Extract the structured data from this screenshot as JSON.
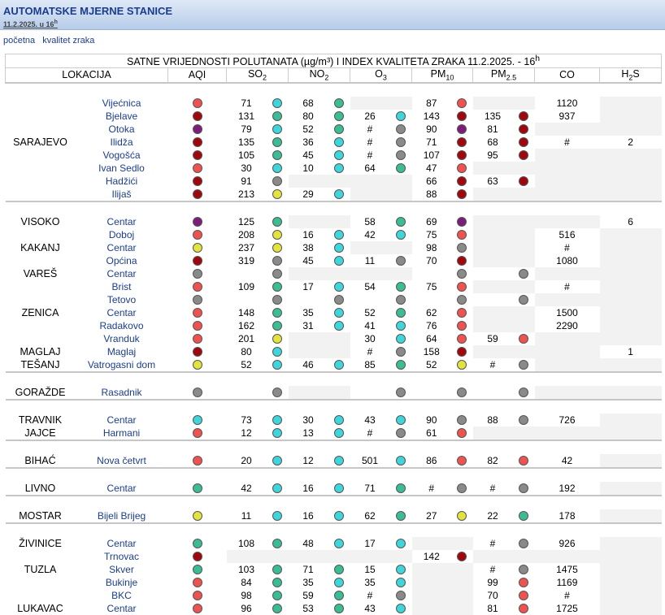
{
  "header": {
    "title": "AUTOMATSKE MJERNE STANICE",
    "date": "11.2.2025. u 16",
    "date_sup": "h"
  },
  "nav": {
    "home": "početna",
    "air": "kvalitet zraka"
  },
  "table": {
    "title": "SATNE VRIJEDNOSTI POLUTANATA (µg/m³) I INDEX KVALITETA ZRAKA 11.2.2025. - 16",
    "title_sup": "h",
    "columns": {
      "loc": "LOKACIJA",
      "aqi": "AQI",
      "so2": "SO",
      "so2_sub": "2",
      "no2": "NO",
      "no2_sub": "2",
      "o3": "O",
      "o3_sub": "3",
      "pm10": "PM",
      "pm10_sub": "10",
      "pm25": "PM",
      "pm25_sub": "2.5",
      "co": "CO",
      "h2s": "H",
      "h2s_sub": "2",
      "h2s_suffix": "S"
    },
    "groups": [
      {
        "rows": [
          {
            "loc": "",
            "st": "Vijećnica",
            "aqi": "red",
            "so2": [
              "71",
              "cyan"
            ],
            "no2": [
              "68",
              "teal"
            ],
            "o3": null,
            "pm10": [
              "87",
              "red"
            ],
            "pm25": null,
            "co": "1120",
            "h2s": ""
          },
          {
            "loc": "",
            "st": "Bjelave",
            "aqi": "dred",
            "so2": [
              "131",
              "teal"
            ],
            "no2": [
              "80",
              "teal"
            ],
            "o3": [
              "26",
              "cyan"
            ],
            "pm10": [
              "143",
              "dred"
            ],
            "pm25": [
              "135",
              "dred"
            ],
            "co": "937",
            "h2s": ""
          },
          {
            "loc": "",
            "st": "Otoka",
            "aqi": "purple",
            "so2": [
              "79",
              "cyan"
            ],
            "no2": [
              "52",
              "teal"
            ],
            "o3": [
              "#",
              "gray"
            ],
            "pm10": [
              "90",
              "purple"
            ],
            "pm25": [
              "81",
              "dred"
            ],
            "co": "",
            "h2s": ""
          },
          {
            "loc": "SARAJEVO",
            "st": "Ilidža",
            "aqi": "dred",
            "so2": [
              "135",
              "teal"
            ],
            "no2": [
              "36",
              "cyan"
            ],
            "o3": [
              "#",
              "gray"
            ],
            "pm10": [
              "71",
              "dred"
            ],
            "pm25": [
              "68",
              "dred"
            ],
            "co": "#",
            "h2s": "2"
          },
          {
            "loc": "",
            "st": "Vogošća",
            "aqi": "dred",
            "so2": [
              "105",
              "teal"
            ],
            "no2": [
              "45",
              "cyan"
            ],
            "o3": [
              "#",
              "gray"
            ],
            "pm10": [
              "107",
              "dred"
            ],
            "pm25": [
              "95",
              "dred"
            ],
            "co": "",
            "h2s": ""
          },
          {
            "loc": "",
            "st": "Ivan Sedlo",
            "aqi": "red",
            "so2": [
              "30",
              "cyan"
            ],
            "no2": [
              "10",
              "cyan"
            ],
            "o3": [
              "64",
              "teal"
            ],
            "pm10": [
              "47",
              "red"
            ],
            "pm25": null,
            "co": "",
            "h2s": ""
          },
          {
            "loc": "",
            "st": "Hadžići",
            "aqi": "dred",
            "so2": [
              "91",
              "gray"
            ],
            "no2": null,
            "o3": null,
            "pm10": [
              "66",
              "dred"
            ],
            "pm25": [
              "63",
              "dred"
            ],
            "co": "",
            "h2s": ""
          },
          {
            "loc": "",
            "st": "Ilijaš",
            "aqi": "dred",
            "so2": [
              "213",
              "yellow"
            ],
            "no2": [
              "29",
              "cyan"
            ],
            "o3": null,
            "pm10": [
              "88",
              "dred"
            ],
            "pm25": null,
            "co": "",
            "h2s": ""
          }
        ]
      },
      {
        "rows": [
          {
            "loc": "VISOKO",
            "st": "Centar",
            "aqi": "purple",
            "so2": [
              "125",
              "teal"
            ],
            "no2": null,
            "o3": [
              "58",
              "teal"
            ],
            "pm10": [
              "69",
              "purple"
            ],
            "pm25": null,
            "co": "",
            "h2s": "6"
          },
          {
            "loc": "",
            "st": "Doboj",
            "aqi": "red",
            "so2": [
              "208",
              "yellow"
            ],
            "no2": [
              "16",
              "cyan"
            ],
            "o3": [
              "42",
              "cyan"
            ],
            "pm10": [
              "75",
              "red"
            ],
            "pm25": null,
            "co": "516",
            "h2s": ""
          },
          {
            "loc": "KAKANJ",
            "st": "Centar",
            "aqi": "yellow",
            "so2": [
              "237",
              "yellow"
            ],
            "no2": [
              "38",
              "cyan"
            ],
            "o3": null,
            "pm10": [
              "98",
              "gray"
            ],
            "pm25": null,
            "co": "#",
            "h2s": ""
          },
          {
            "loc": "",
            "st": "Općina",
            "aqi": "dred",
            "so2": [
              "319",
              "gray"
            ],
            "no2": [
              "45",
              "cyan"
            ],
            "o3": [
              "11",
              "gray"
            ],
            "pm10": [
              "70",
              "dred"
            ],
            "pm25": null,
            "co": "1080",
            "h2s": ""
          },
          {
            "loc": "VAREŠ",
            "st": "Centar",
            "aqi": "gray",
            "so2": [
              "",
              "gray"
            ],
            "no2": null,
            "o3": null,
            "pm10": [
              "",
              "gray"
            ],
            "pm25": [
              "",
              "gray"
            ],
            "co": "",
            "h2s": ""
          },
          {
            "loc": "",
            "st": "Brist",
            "aqi": "red",
            "so2": [
              "109",
              "teal"
            ],
            "no2": [
              "17",
              "cyan"
            ],
            "o3": [
              "54",
              "teal"
            ],
            "pm10": [
              "75",
              "red"
            ],
            "pm25": null,
            "co": "#",
            "h2s": ""
          },
          {
            "loc": "",
            "st": "Tetovo",
            "aqi": "gray",
            "so2": [
              "",
              "gray"
            ],
            "no2": [
              "",
              "gray"
            ],
            "o3": [
              "",
              "gray"
            ],
            "pm10": [
              "",
              "gray"
            ],
            "pm25": [
              "",
              "gray"
            ],
            "co": "",
            "h2s": ""
          },
          {
            "loc": "ZENICA",
            "st": "Centar",
            "aqi": "red",
            "so2": [
              "148",
              "teal"
            ],
            "no2": [
              "35",
              "cyan"
            ],
            "o3": [
              "52",
              "teal"
            ],
            "pm10": [
              "62",
              "red"
            ],
            "pm25": null,
            "co": "1500",
            "h2s": ""
          },
          {
            "loc": "",
            "st": "Radakovo",
            "aqi": "red",
            "so2": [
              "162",
              "teal"
            ],
            "no2": [
              "31",
              "cyan"
            ],
            "o3": [
              "41",
              "cyan"
            ],
            "pm10": [
              "76",
              "red"
            ],
            "pm25": null,
            "co": "2290",
            "h2s": ""
          },
          {
            "loc": "",
            "st": "Vranduk",
            "aqi": "red",
            "so2": [
              "201",
              "yellow"
            ],
            "no2": null,
            "o3": [
              "30",
              "cyan"
            ],
            "pm10": [
              "64",
              "red"
            ],
            "pm25": [
              "59",
              "red"
            ],
            "co": "",
            "h2s": ""
          },
          {
            "loc": "MAGLAJ",
            "st": "Maglaj",
            "aqi": "dred",
            "so2": [
              "80",
              "cyan"
            ],
            "no2": null,
            "o3": [
              "#",
              "gray"
            ],
            "pm10": [
              "158",
              "dred"
            ],
            "pm25": null,
            "co": "",
            "h2s": "1"
          },
          {
            "loc": "TEŠANJ",
            "st": "Vatrogasni dom",
            "aqi": "yellow",
            "so2": [
              "52",
              "cyan"
            ],
            "no2": [
              "46",
              "cyan"
            ],
            "o3": [
              "85",
              "teal"
            ],
            "pm10": [
              "52",
              "yellow"
            ],
            "pm25": [
              "#",
              "gray"
            ],
            "co": "",
            "h2s": ""
          }
        ]
      },
      {
        "rows": [
          {
            "loc": "GORAŽDE",
            "st": "Rasadnik",
            "aqi": "gray",
            "so2": [
              "",
              "gray"
            ],
            "no2": null,
            "o3": [
              "",
              "gray"
            ],
            "pm10": [
              "",
              "gray"
            ],
            "pm25": [
              "",
              "gray"
            ],
            "co": "",
            "h2s": ""
          }
        ]
      },
      {
        "rows": [
          {
            "loc": "TRAVNIK",
            "st": "Centar",
            "aqi": "cyan",
            "so2": [
              "73",
              "cyan"
            ],
            "no2": [
              "30",
              "cyan"
            ],
            "o3": [
              "43",
              "cyan"
            ],
            "pm10": [
              "90",
              "gray"
            ],
            "pm25": [
              "88",
              "gray"
            ],
            "co": "726",
            "h2s": ""
          },
          {
            "loc": "JAJCE",
            "st": "Harmani",
            "aqi": "red",
            "so2": [
              "12",
              "cyan"
            ],
            "no2": [
              "13",
              "cyan"
            ],
            "o3": [
              "#",
              "gray"
            ],
            "pm10": [
              "61",
              "red"
            ],
            "pm25": null,
            "co": "",
            "h2s": ""
          }
        ]
      },
      {
        "rows": [
          {
            "loc": "BIHAĆ",
            "st": "Nova četvrt",
            "aqi": "red",
            "so2": [
              "20",
              "cyan"
            ],
            "no2": [
              "12",
              "cyan"
            ],
            "o3": [
              "501",
              "cyan"
            ],
            "pm10": [
              "86",
              "red"
            ],
            "pm25": [
              "82",
              "red"
            ],
            "co": "42",
            "h2s": ""
          }
        ]
      },
      {
        "rows": [
          {
            "loc": "LIVNO",
            "st": "Centar",
            "aqi": "teal",
            "so2": [
              "42",
              "cyan"
            ],
            "no2": [
              "16",
              "cyan"
            ],
            "o3": [
              "71",
              "teal"
            ],
            "pm10": [
              "#",
              "gray"
            ],
            "pm25": [
              "#",
              "gray"
            ],
            "co": "192",
            "h2s": ""
          }
        ]
      },
      {
        "rows": [
          {
            "loc": "MOSTAR",
            "st": "Bijeli Brijeg",
            "aqi": "yellow",
            "so2": [
              "11",
              "cyan"
            ],
            "no2": [
              "16",
              "cyan"
            ],
            "o3": [
              "62",
              "teal"
            ],
            "pm10": [
              "27",
              "yellow"
            ],
            "pm25": [
              "22",
              "teal"
            ],
            "co": "178",
            "h2s": ""
          }
        ]
      },
      {
        "rows": [
          {
            "loc": "ŽIVINICE",
            "st": "Centar",
            "aqi": "teal",
            "so2": [
              "108",
              "teal"
            ],
            "no2": [
              "48",
              "cyan"
            ],
            "o3": [
              "17",
              "cyan"
            ],
            "pm10": null,
            "pm25": [
              "#",
              "gray"
            ],
            "co": "926",
            "h2s": ""
          },
          {
            "loc": "",
            "st": "Trnovac",
            "aqi": "dred",
            "so2": null,
            "no2": null,
            "o3": null,
            "pm10": [
              "142",
              "dred"
            ],
            "pm25": null,
            "co": "",
            "h2s": ""
          },
          {
            "loc": "TUZLA",
            "st": "Skver",
            "aqi": "teal",
            "so2": [
              "103",
              "teal"
            ],
            "no2": [
              "71",
              "teal"
            ],
            "o3": [
              "15",
              "cyan"
            ],
            "pm10": null,
            "pm25": [
              "#",
              "gray"
            ],
            "co": "1475",
            "h2s": ""
          },
          {
            "loc": "",
            "st": "Bukinje",
            "aqi": "red",
            "so2": [
              "84",
              "teal"
            ],
            "no2": [
              "35",
              "cyan"
            ],
            "o3": [
              "35",
              "cyan"
            ],
            "pm10": null,
            "pm25": [
              "99",
              "red"
            ],
            "co": "1169",
            "h2s": ""
          },
          {
            "loc": "",
            "st": "BKC",
            "aqi": "red",
            "so2": [
              "98",
              "teal"
            ],
            "no2": [
              "59",
              "teal"
            ],
            "o3": [
              "#",
              "gray"
            ],
            "pm10": null,
            "pm25": [
              "70",
              "red"
            ],
            "co": "#",
            "h2s": ""
          },
          {
            "loc": "LUKAVAC",
            "st": "Centar",
            "aqi": "red",
            "so2": [
              "96",
              "teal"
            ],
            "no2": [
              "53",
              "teal"
            ],
            "o3": [
              "43",
              "cyan"
            ],
            "pm10": null,
            "pm25": [
              "81",
              "red"
            ],
            "co": "1725",
            "h2s": ""
          }
        ]
      }
    ]
  }
}
